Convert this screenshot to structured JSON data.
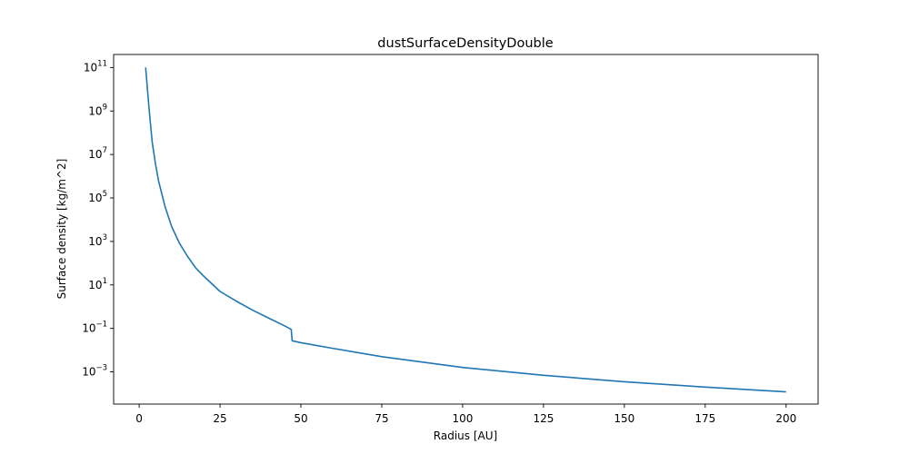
{
  "chart_data": {
    "type": "line",
    "title": "dustSurfaceDensityDouble",
    "xlabel": "Radius [AU]",
    "ylabel": "Surface density [kg/m^2]",
    "xlim": [
      -7.9,
      209.9
    ],
    "ylim": [
      -4.48,
      11.6
    ],
    "yscale": "log",
    "grid": false,
    "legend": "none",
    "line_color": "#1f77b4",
    "x_ticks": [
      0,
      25,
      50,
      75,
      100,
      125,
      150,
      175,
      200
    ],
    "y_ticks": [
      {
        "base": "10",
        "exp": "−3",
        "log": -3
      },
      {
        "base": "10",
        "exp": "−1",
        "log": -1
      },
      {
        "base": "10",
        "exp": "1",
        "log": 1
      },
      {
        "base": "10",
        "exp": "3",
        "log": 3
      },
      {
        "base": "10",
        "exp": "5",
        "log": 5
      },
      {
        "base": "10",
        "exp": "7",
        "log": 7
      },
      {
        "base": "10",
        "exp": "9",
        "log": 9
      },
      {
        "base": "10",
        "exp": "11",
        "log": 11
      }
    ],
    "series": [
      {
        "x": [
          2,
          3,
          4,
          5,
          6,
          8,
          10,
          12.5,
          15,
          17.5,
          20,
          25,
          30,
          35,
          40,
          45,
          47,
          47.3,
          50,
          60,
          75,
          100,
          125,
          150,
          175,
          200
        ],
        "y": [
          100000000000.0,
          1600000000.0,
          40000000.0,
          4000000.0,
          600000.0,
          40000.0,
          5000.0,
          800.0,
          200,
          60,
          25,
          5,
          1.8,
          0.7,
          0.3,
          0.13,
          0.09,
          0.027,
          0.022,
          0.012,
          0.005,
          0.0016,
          0.0007,
          0.00035,
          0.0002,
          0.00012
        ]
      }
    ]
  }
}
